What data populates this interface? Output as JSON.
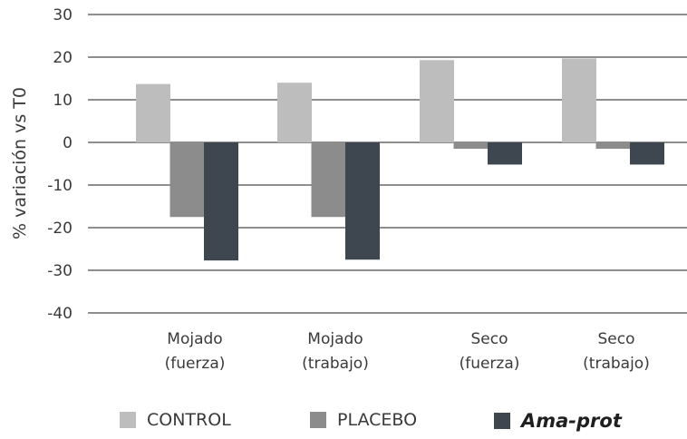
{
  "chart_data": {
    "type": "bar",
    "ylabel": "% variación vs T0",
    "ylim": [
      -40,
      30
    ],
    "yticks": [
      30,
      20,
      10,
      0,
      -10,
      -20,
      -30,
      -40
    ],
    "grid": true,
    "legend_position": "bottom",
    "categories": [
      [
        "Mojado",
        "(fuerza)"
      ],
      [
        "Mojado",
        "(trabajo)"
      ],
      [
        "Seco",
        "(fuerza)"
      ],
      [
        "Seco",
        "(trabajo)"
      ]
    ],
    "series": [
      {
        "name": "CONTROL",
        "color": "#bdbdbd",
        "values": [
          13.7,
          14.0,
          19.3,
          19.7
        ]
      },
      {
        "name": "PLACEBO",
        "color": "#8c8c8c",
        "values": [
          -17.5,
          -17.5,
          -1.5,
          -1.5
        ]
      },
      {
        "name": "Ama-prot",
        "color": "#3e4650",
        "values": [
          -27.7,
          -27.5,
          -5.2,
          -5.2
        ]
      }
    ]
  }
}
